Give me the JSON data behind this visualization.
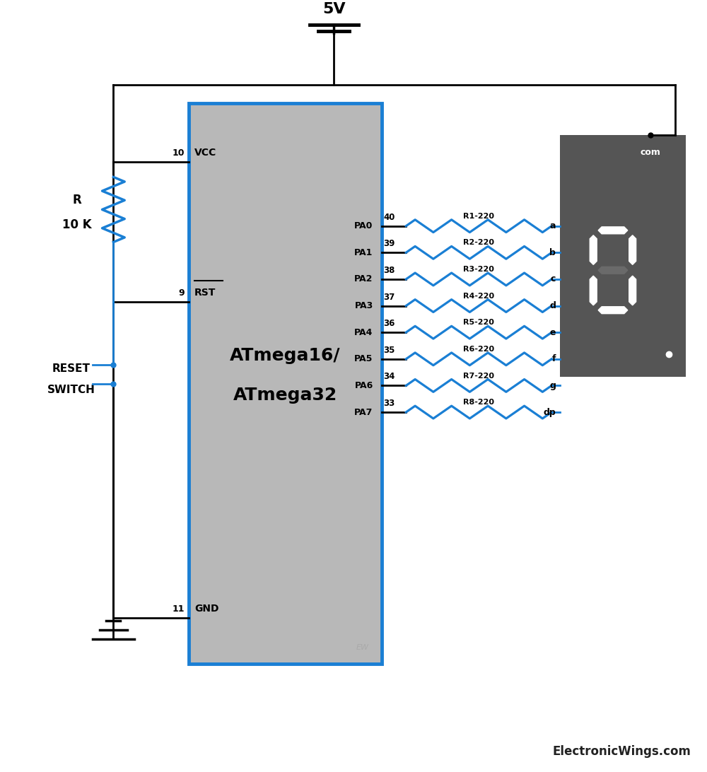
{
  "bg_color": "#ffffff",
  "ic_color": "#b8b8b8",
  "ic_border_color": "#1a7fd4",
  "wire_color_black": "#000000",
  "wire_color_blue": "#1a7fd4",
  "display_bg": "#555555",
  "segment_on": "#ffffff",
  "segment_off": "#6a6a6a",
  "title": "5V",
  "ic_label1": "ATmega16/",
  "ic_label2": "ATmega32",
  "vcc_label": "VCC",
  "rst_label": "RST",
  "gnd_label": "GND",
  "pin10": "10",
  "pin9": "9",
  "pin11": "11",
  "com_label": "com",
  "pa_labels": [
    "PA0",
    "PA1",
    "PA2",
    "PA3",
    "PA4",
    "PA5",
    "PA6",
    "PA7"
  ],
  "pa_pins": [
    "40",
    "39",
    "38",
    "37",
    "36",
    "35",
    "34",
    "33"
  ],
  "resistor_labels": [
    "R1-220",
    "R2-220",
    "R3-220",
    "R4-220",
    "R5-220",
    "R6-220",
    "R7-220",
    "R8-220"
  ],
  "seg_labels": [
    "a",
    "b",
    "c",
    "d",
    "e",
    "f",
    "g",
    "dp"
  ],
  "reset_label1": "RESET",
  "reset_label2": "SWITCH",
  "r_label1": "R",
  "r_label2": "10 K",
  "watermark": "ElectronicWings.com",
  "ew_label": "EW"
}
